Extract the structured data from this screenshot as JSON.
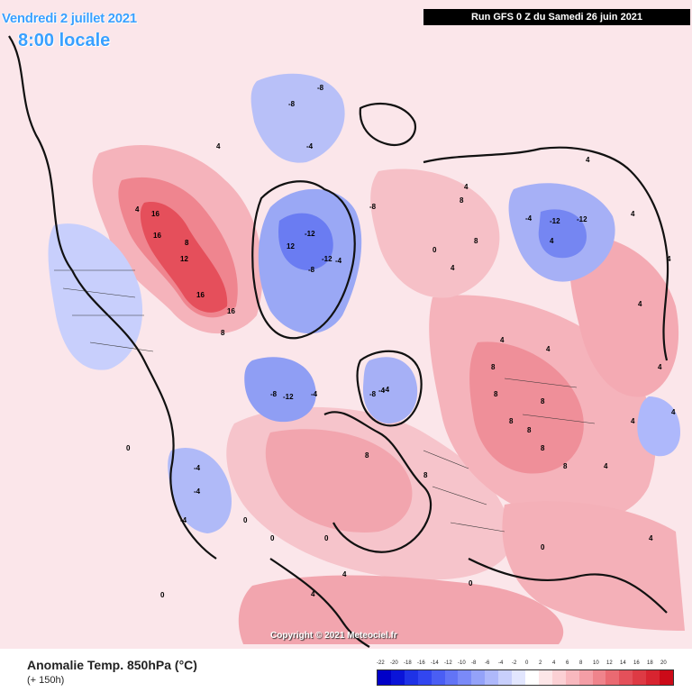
{
  "header": {
    "date": "Vendredi 2 juillet 2021",
    "time": "8:00 locale",
    "run": "Run GFS 0 Z du Samedi 26 juin 2021"
  },
  "footer": {
    "title": "Anomalie Temp. 850hPa (°C)",
    "lead": "(+ 150h)",
    "copyright": "Copyright © 2021 Meteociel.fr"
  },
  "legend": {
    "labels": [
      "-22",
      "-20",
      "-18",
      "-16",
      "-14",
      "-12",
      "-10",
      "-8",
      "-6",
      "-4",
      "-2",
      "0",
      "2",
      "4",
      "6",
      "8",
      "10",
      "12",
      "14",
      "16",
      "18",
      "20"
    ],
    "colors": [
      "#0000c8",
      "#0a14d8",
      "#1e32e6",
      "#3246f0",
      "#4a5ef4",
      "#6274f6",
      "#7a8af8",
      "#94a2f9",
      "#aeb8fb",
      "#c8cffc",
      "#e2e6fe",
      "#ffffff",
      "#fde6e8",
      "#fbd0d4",
      "#f8b8be",
      "#f49ea6",
      "#ef848c",
      "#ea6a72",
      "#e4505a",
      "#de3a44",
      "#d82430",
      "#cc0a18"
    ]
  },
  "contour_labels": [
    "16",
    "16",
    "12",
    "8",
    "4",
    "4",
    "16",
    "16",
    "8",
    "12",
    "-8",
    "-8",
    "-4",
    "-12",
    "-12",
    "-8",
    "-4",
    "-8",
    "-12",
    "-8",
    "-4",
    "-8",
    "-4",
    "-12",
    "-12",
    "-4",
    "4",
    "8",
    "8",
    "8",
    "4",
    "4",
    "4",
    "4",
    "8",
    "8",
    "8",
    "8",
    "8",
    "4",
    "4",
    "4",
    "4",
    "8",
    "8",
    "-4",
    "-4",
    "-4",
    "-4",
    "4",
    "4",
    "0",
    "0",
    "0",
    "0",
    "0",
    "0",
    "0",
    "0",
    "4",
    "4",
    "4",
    "4",
    "8",
    "4"
  ],
  "colors": {
    "title_blue": "#3aa0ff",
    "run_bg": "#000000",
    "run_fg": "#ffffff"
  }
}
